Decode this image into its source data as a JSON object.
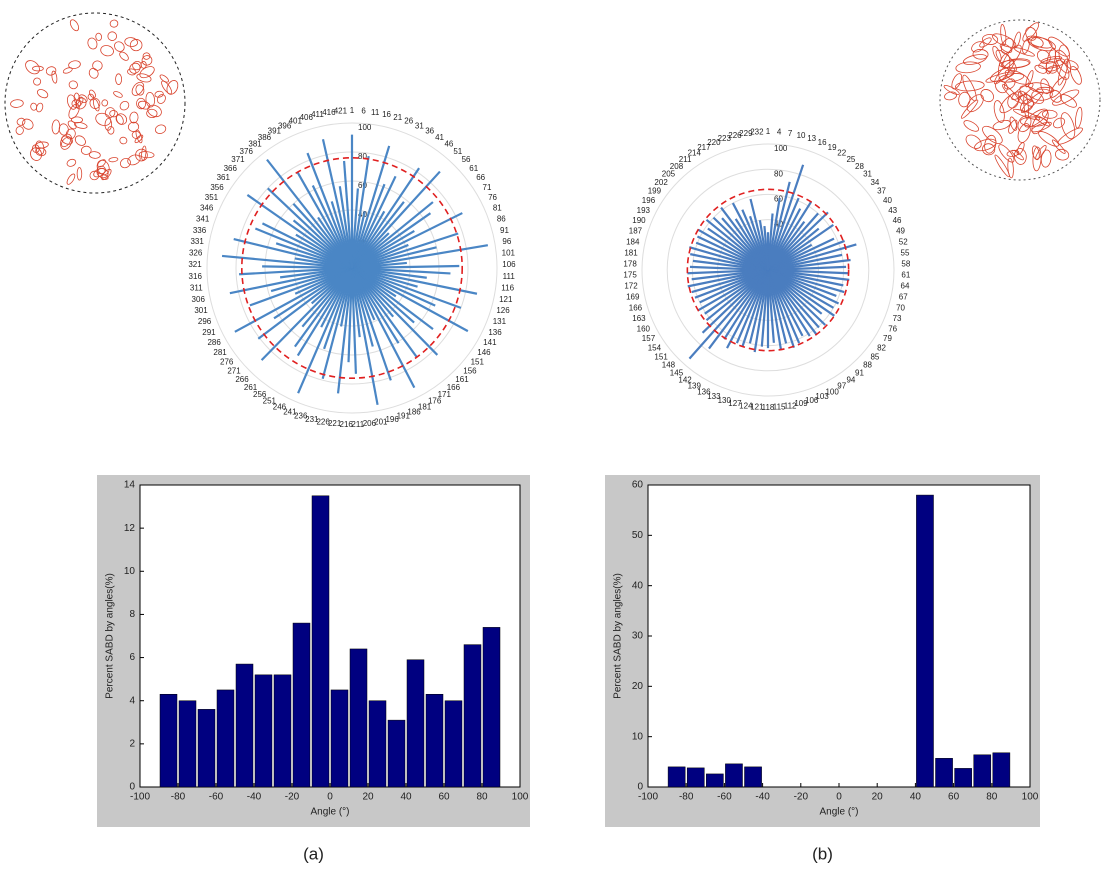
{
  "chart_data": [
    {
      "type": "polar",
      "series_color": "#4a86c5",
      "reference_r": 76,
      "reference_color": "#e02020",
      "rlim": [
        0,
        100
      ],
      "rticks": [
        20,
        40,
        60,
        80,
        100
      ],
      "categories": [
        "1",
        "6",
        "11",
        "16",
        "21",
        "26",
        "31",
        "36",
        "41",
        "46",
        "51",
        "56",
        "61",
        "66",
        "71",
        "76",
        "81",
        "86",
        "91",
        "96",
        "101",
        "106",
        "111",
        "116",
        "121",
        "126",
        "131",
        "136",
        "141",
        "146",
        "151",
        "156",
        "161",
        "166",
        "171",
        "176",
        "181",
        "186",
        "191",
        "196",
        "201",
        "206",
        "211",
        "216",
        "221",
        "226",
        "231",
        "236",
        "241",
        "246",
        "251",
        "256",
        "261",
        "266",
        "271",
        "276",
        "281",
        "286",
        "291",
        "296",
        "301",
        "306",
        "311",
        "316",
        "321",
        "326",
        "331",
        "336",
        "341",
        "346",
        "351",
        "356",
        "361",
        "366",
        "371",
        "376",
        "381",
        "386",
        "391",
        "396",
        "401",
        "406",
        "411",
        "416",
        "421"
      ],
      "values": [
        92,
        55,
        78,
        40,
        88,
        62,
        70,
        45,
        83,
        58,
        90,
        35,
        72,
        66,
        50,
        85,
        42,
        77,
        60,
        95,
        38,
        74,
        68,
        52,
        88,
        47,
        80,
        63,
        91,
        36,
        70,
        57,
        84,
        44,
        76,
        61,
        93,
        39,
        82,
        56,
        96,
        48,
        73,
        65,
        87,
        41,
        79,
        59,
        94,
        46,
        71,
        67,
        53,
        89,
        37,
        81,
        64,
        92,
        43,
        75,
        58,
        86,
        50,
        78,
        62,
        90,
        40,
        84,
        55,
        72,
        69,
        45,
        88,
        52,
        80,
        60,
        95,
        42,
        76,
        63,
        85,
        48,
        91,
        57,
        74
      ]
    },
    {
      "type": "polar",
      "series_color": "#4a7dbf",
      "reference_r": 64,
      "reference_color": "#e02020",
      "rlim": [
        0,
        100
      ],
      "rticks": [
        20,
        40,
        60,
        80,
        100
      ],
      "categories": [
        "1",
        "4",
        "7",
        "10",
        "13",
        "16",
        "19",
        "22",
        "25",
        "28",
        "31",
        "34",
        "37",
        "40",
        "43",
        "46",
        "49",
        "52",
        "55",
        "58",
        "61",
        "64",
        "67",
        "70",
        "73",
        "76",
        "79",
        "82",
        "85",
        "88",
        "91",
        "94",
        "97",
        "100",
        "103",
        "106",
        "109",
        "112",
        "115",
        "118",
        "121",
        "124",
        "127",
        "130",
        "133",
        "136",
        "139",
        "142",
        "145",
        "148",
        "151",
        "154",
        "157",
        "160",
        "163",
        "166",
        "169",
        "172",
        "175",
        "178",
        "181",
        "184",
        "187",
        "190",
        "193",
        "196",
        "199",
        "202",
        "205",
        "208",
        "211",
        "214",
        "217",
        "220",
        "223",
        "226",
        "229",
        "232"
      ],
      "values": [
        30,
        45,
        58,
        72,
        88,
        62,
        55,
        64,
        48,
        60,
        66,
        52,
        63,
        40,
        58,
        65,
        73,
        60,
        66,
        62,
        64,
        65,
        61,
        63,
        58,
        62,
        60,
        64,
        55,
        63,
        61,
        64,
        62,
        59,
        63,
        65,
        60,
        64,
        58,
        62,
        61,
        66,
        60,
        64,
        63,
        70,
        65,
        78,
        94,
        72,
        63,
        61,
        64,
        60,
        62,
        63,
        65,
        61,
        64,
        62,
        60,
        63,
        65,
        61,
        62,
        64,
        58,
        63,
        60,
        55,
        62,
        48,
        60,
        52,
        45,
        58,
        40,
        35
      ]
    },
    {
      "type": "histogram",
      "color": "#000080",
      "bins": [
        -90,
        -80,
        -70,
        -60,
        -50,
        -40,
        -30,
        -20,
        -10,
        0,
        10,
        20,
        30,
        40,
        50,
        60,
        70,
        80,
        90
      ],
      "values": [
        4.3,
        4.0,
        3.6,
        4.5,
        5.7,
        5.2,
        5.2,
        7.6,
        13.5,
        4.5,
        6.4,
        4.0,
        3.1,
        5.9,
        4.3,
        4.0,
        6.6,
        7.4
      ],
      "xlim": [
        -100,
        100
      ],
      "xticks": [
        -100,
        -80,
        -60,
        -40,
        -20,
        0,
        20,
        40,
        60,
        80,
        100
      ],
      "ylim": [
        0,
        14
      ],
      "yticks": [
        0,
        2,
        4,
        6,
        8,
        10,
        12,
        14
      ],
      "xlabel": "Angle (°)",
      "ylabel": "Percent SABD by angles(%)",
      "caption": "(a)"
    },
    {
      "type": "histogram",
      "color": "#000080",
      "bins": [
        -90,
        -80,
        -70,
        -60,
        -50,
        -40,
        -30,
        -20,
        -10,
        0,
        10,
        20,
        30,
        40,
        50,
        60,
        70,
        80,
        90
      ],
      "values": [
        4.0,
        3.8,
        2.6,
        4.6,
        4.0,
        0,
        0,
        0,
        0,
        0,
        0,
        0,
        0,
        58,
        5.7,
        3.7,
        6.4,
        6.8
      ],
      "xlim": [
        -100,
        100
      ],
      "xticks": [
        -100,
        -80,
        -60,
        -40,
        -20,
        0,
        20,
        40,
        60,
        80,
        100
      ],
      "ylim": [
        0,
        60
      ],
      "yticks": [
        0,
        10,
        20,
        30,
        40,
        50,
        60
      ],
      "xlabel": "Angle (°)",
      "ylabel": "Percent SABD by angles(%)",
      "caption": "(b)"
    }
  ]
}
